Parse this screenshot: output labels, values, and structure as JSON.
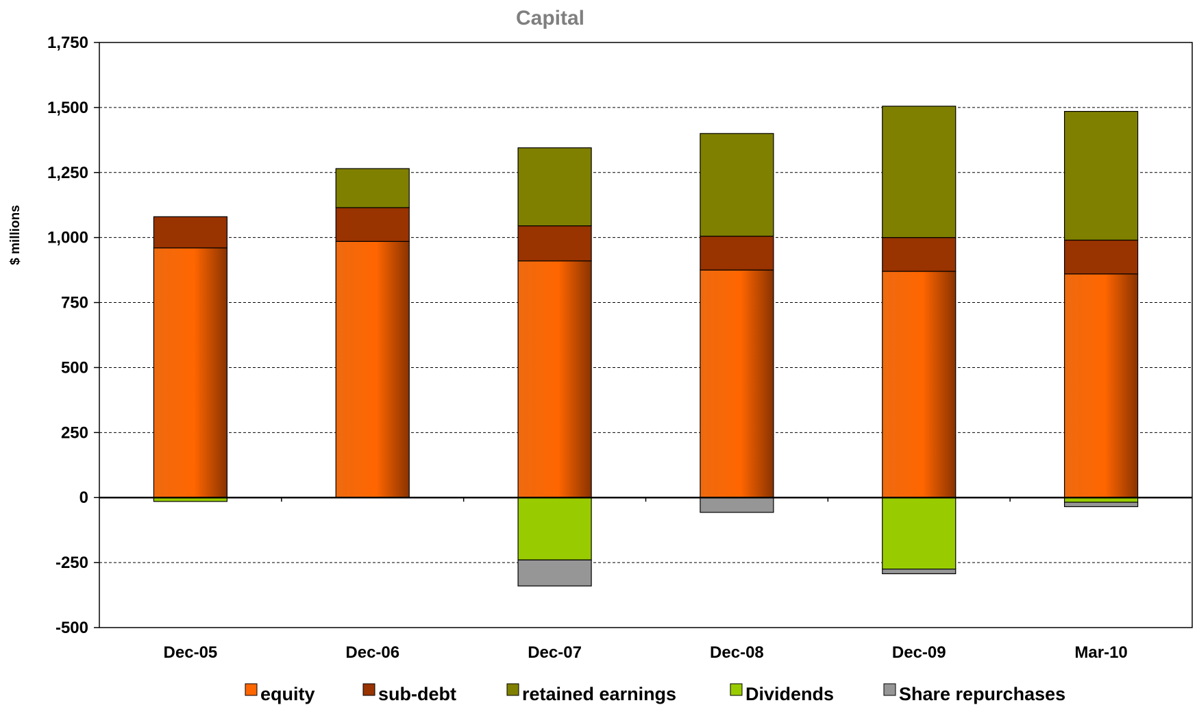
{
  "chart_data": {
    "type": "bar",
    "stacked": true,
    "title": "Capital",
    "xlabel": "",
    "ylabel": "$ millions",
    "ylim": [
      -500,
      1750
    ],
    "yticks": [
      -500,
      -250,
      0,
      250,
      500,
      750,
      1000,
      1250,
      1500,
      1750
    ],
    "ytick_labels": [
      "-500",
      "-250",
      "0",
      "250",
      "500",
      "750",
      "1,000",
      "1,250",
      "1,500",
      "1,750"
    ],
    "grid": true,
    "legend_position": "bottom",
    "categories": [
      "Dec-05",
      "Dec-06",
      "Dec-07",
      "Dec-08",
      "Dec-09",
      "Mar-10"
    ],
    "series": [
      {
        "name": "equity",
        "color": "#ff6600",
        "values": [
          960,
          985,
          910,
          875,
          870,
          860
        ]
      },
      {
        "name": "sub-debt",
        "color": "#993300",
        "values": [
          120,
          130,
          135,
          130,
          130,
          130
        ]
      },
      {
        "name": "retained earnings",
        "color": "#808000",
        "values": [
          0,
          150,
          300,
          395,
          505,
          495
        ]
      },
      {
        "name": "Dividends",
        "color": "#99cc00",
        "values": [
          -15,
          0,
          -240,
          0,
          -275,
          -18
        ]
      },
      {
        "name": "Share repurchases",
        "color": "#969696",
        "values": [
          0,
          0,
          -100,
          -57,
          -18,
          -17
        ]
      }
    ]
  }
}
